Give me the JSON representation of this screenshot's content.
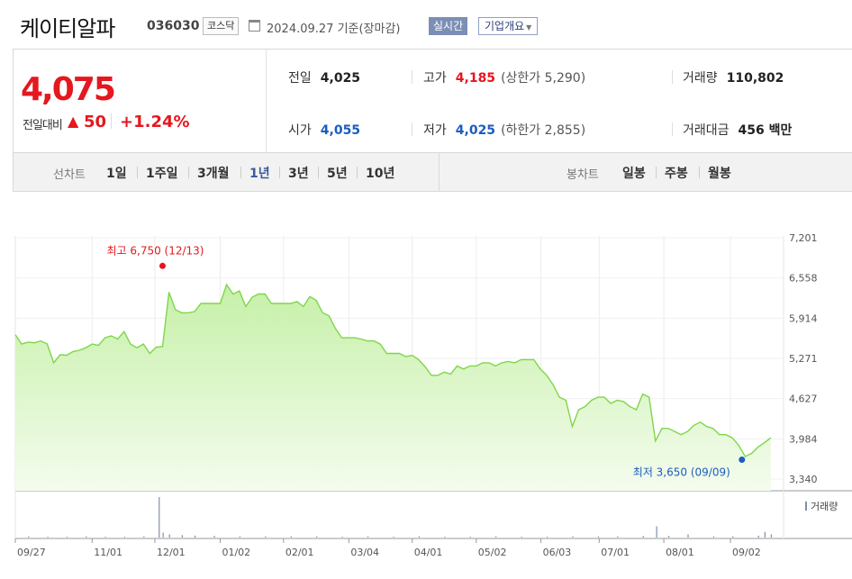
{
  "header": {
    "name": "케이티알파",
    "code": "036030",
    "market": "코스닥",
    "as_of": "2024.09.27 기준(장마감)",
    "realtime_label": "실시간",
    "company_label": "기업개요"
  },
  "summary": {
    "price": "4,075",
    "change_label": "전일대비",
    "change_arrow": "▲",
    "change_value": "50",
    "change_pct": "+1.24%",
    "prev_label": "전일",
    "prev_value": "4,025",
    "high_label": "고가",
    "high_value": "4,185",
    "upper_limit": "(상한가 5,290)",
    "volume_label": "거래량",
    "volume_value": "110,802",
    "open_label": "시가",
    "open_value": "4,055",
    "low_label": "저가",
    "low_value": "4,025",
    "lower_limit": "(하한가 2,855)",
    "amount_label": "거래대금",
    "amount_value": "456 백만"
  },
  "period_bar": {
    "line_chart_label": "선차트",
    "periods": [
      "1일",
      "1주일",
      "3개월",
      "1년",
      "3년",
      "5년",
      "10년"
    ],
    "active_period": "1년",
    "candle_label": "봉차트",
    "candles": [
      "일봉",
      "주봉",
      "월봉"
    ]
  },
  "colors": {
    "line": "#7fd64a",
    "fill_top": "#c6f0a8",
    "fill_bottom": "#f4fcee",
    "up": "#e5171f",
    "down": "#1a5dbf",
    "volume": "#7f8fa8"
  },
  "chart_data": {
    "type": "area",
    "ylim": [
      3340,
      7201
    ],
    "y_ticks": [
      "7,201",
      "6,558",
      "5,914",
      "5,271",
      "4,627",
      "3,984",
      "3,340"
    ],
    "x_ticks": [
      "09/27",
      "11/01",
      "12/01",
      "01/02",
      "02/01",
      "03/04",
      "04/01",
      "05/02",
      "06/03",
      "07/01",
      "08/01",
      "09/02"
    ],
    "x_tick_positions": [
      0,
      1.2,
      2.18,
      3.2,
      4.19,
      5.21,
      6.2,
      7.2,
      8.21,
      9.12,
      10.13,
      11.17
    ],
    "x_max": 12.0,
    "series": [
      {
        "x": [
          0,
          0.1,
          0.2,
          0.3,
          0.4,
          0.5,
          0.6,
          0.7,
          0.8,
          0.9,
          1.0,
          1.1,
          1.2,
          1.3,
          1.4,
          1.5,
          1.6,
          1.7,
          1.8,
          1.9,
          2.0,
          2.1,
          2.2,
          2.3,
          2.4,
          2.5,
          2.6,
          2.7,
          2.8,
          2.9,
          3.0,
          3.1,
          3.2,
          3.3,
          3.4,
          3.5,
          3.6,
          3.7,
          3.8,
          3.9,
          4.0,
          4.1,
          4.2,
          4.3,
          4.4,
          4.5,
          4.6,
          4.7,
          4.8,
          4.9,
          5.0,
          5.1,
          5.2,
          5.3,
          5.4,
          5.5,
          5.6,
          5.7,
          5.8,
          5.9,
          6.0,
          6.1,
          6.2,
          6.3,
          6.4,
          6.5,
          6.6,
          6.7,
          6.8,
          6.9,
          7.0,
          7.1,
          7.2,
          7.3,
          7.4,
          7.5,
          7.6,
          7.7,
          7.8,
          7.9,
          8.0,
          8.1,
          8.2,
          8.3,
          8.4,
          8.5,
          8.6,
          8.7,
          8.8,
          8.9,
          9.0,
          9.1,
          9.2,
          9.3,
          9.4,
          9.5,
          9.6,
          9.7,
          9.8,
          9.9,
          10.0,
          10.1,
          10.2,
          10.3,
          10.4,
          10.5,
          10.6,
          10.7,
          10.8,
          10.9,
          11.0,
          11.1,
          11.2,
          11.3,
          11.4,
          11.5,
          11.6,
          11.7,
          11.8
        ],
        "values": [
          5650,
          5500,
          5530,
          5520,
          5550,
          5500,
          5200,
          5330,
          5320,
          5380,
          5400,
          5440,
          5500,
          5480,
          5600,
          5630,
          5580,
          5700,
          5500,
          5440,
          5500,
          5350,
          5450,
          5460,
          6330,
          6050,
          6000,
          6000,
          6020,
          6150,
          6150,
          6150,
          6150,
          6450,
          6300,
          6350,
          6100,
          6250,
          6300,
          6300,
          6150,
          6150,
          6150,
          6150,
          6180,
          6100,
          6260,
          6200,
          6000,
          5950,
          5750,
          5600,
          5600,
          5600,
          5580,
          5550,
          5550,
          5500,
          5350,
          5350,
          5350,
          5300,
          5320,
          5250,
          5140,
          5000,
          5000,
          5050,
          5020,
          5150,
          5100,
          5150,
          5150,
          5200,
          5200,
          5150,
          5200,
          5220,
          5200,
          5250,
          5250,
          5250,
          5100,
          5000,
          4850,
          4650,
          4600,
          4180,
          4450,
          4500,
          4600,
          4650,
          4650,
          4550,
          4600,
          4580,
          4500,
          4450,
          4700,
          4650,
          3950,
          4150,
          4150,
          4100,
          4050,
          4100,
          4200,
          4250,
          4180,
          4150,
          4050,
          4050,
          4000,
          3880,
          3700,
          3750,
          3850,
          3920,
          4000
        ]
      }
    ],
    "volume": {
      "x": [
        0.2,
        0.5,
        0.8,
        1.1,
        1.4,
        1.7,
        2.0,
        2.24,
        2.3,
        2.4,
        2.6,
        2.8,
        3.1,
        3.5,
        3.9,
        4.3,
        4.7,
        5.1,
        5.5,
        5.9,
        6.3,
        6.7,
        7.1,
        7.5,
        7.9,
        8.3,
        8.7,
        9.1,
        9.4,
        9.8,
        10.01,
        10.2,
        10.5,
        10.9,
        11.2,
        11.6,
        11.7,
        11.8
      ],
      "values": [
        3,
        2,
        2,
        3,
        2,
        2,
        3,
        100,
        12,
        8,
        6,
        5,
        4,
        3,
        3,
        3,
        3,
        2,
        3,
        2,
        3,
        2,
        2,
        3,
        2,
        2,
        3,
        3,
        3,
        4,
        28,
        4,
        8,
        3,
        3,
        5,
        14,
        8
      ]
    },
    "annotations": {
      "high": {
        "label": "최고 6,750 (12/13)",
        "x": 2.3,
        "value": 6750
      },
      "low": {
        "label": "최저 3,650 (09/09)",
        "x": 11.35,
        "value": 3650
      }
    },
    "volume_label": "거래량"
  }
}
